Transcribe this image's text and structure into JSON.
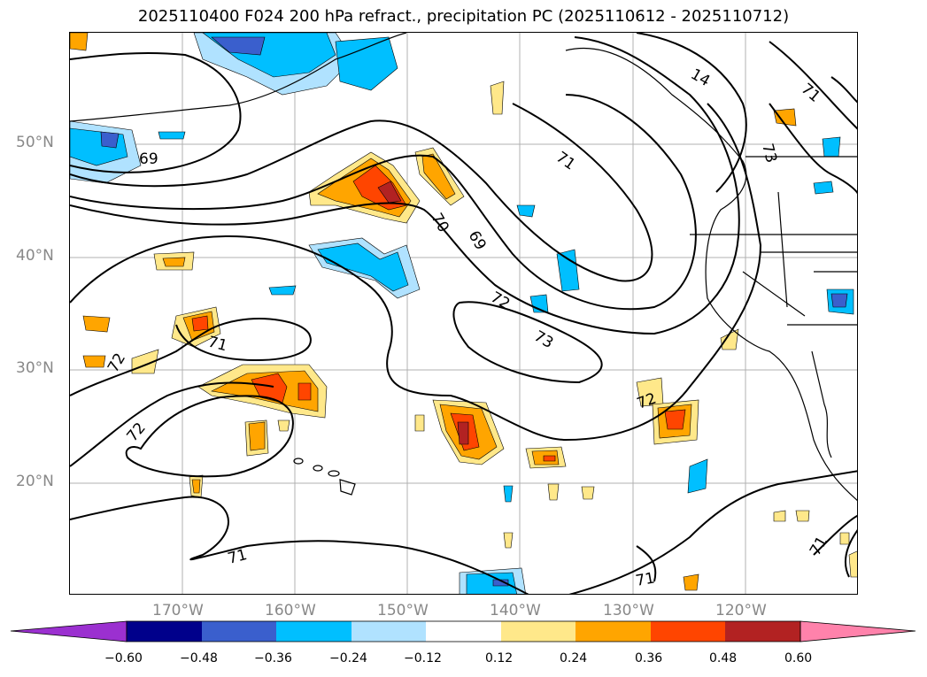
{
  "title": "2025110400 F024 200 hPa refract., precipitation PC (2025110612 - 2025110712)",
  "lat_labels": [
    "50°N",
    "40°N",
    "30°N",
    "20°N"
  ],
  "lon_labels": [
    "170°W",
    "160°W",
    "150°W",
    "140°W",
    "130°W",
    "120°W"
  ],
  "contour_labels": [
    "69",
    "70",
    "69",
    "71",
    "72",
    "73",
    "71",
    "72",
    "72",
    "71",
    "71",
    "71",
    "71",
    "72",
    "73",
    "14"
  ],
  "colorbar": {
    "ticks": [
      "−0.60",
      "−0.48",
      "−0.36",
      "−0.24",
      "−0.12",
      "0.12",
      "0.24",
      "0.36",
      "0.48",
      "0.60"
    ],
    "colors": [
      "#9b30d0",
      "#00008b",
      "#3a5fcd",
      "#00bfff",
      "#b0e2ff",
      "#ffffff",
      "#ffe88a",
      "#ffa500",
      "#ff4500",
      "#b22222",
      "#ff82ab"
    ]
  }
}
